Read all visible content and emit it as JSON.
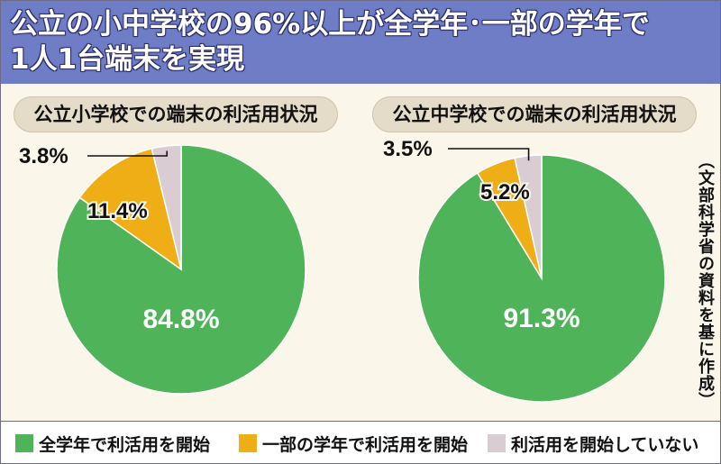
{
  "title": {
    "line1": "公立の小中学校の96%以上が全学年･一部の学年で",
    "line2": "1人1台端末を実現"
  },
  "source": "（文部科学省の資料を基に作成）",
  "colors": {
    "full": "#4fb35a",
    "partial": "#f0ae16",
    "none": "#d9cdd3",
    "title_bg": "#6f7cc6",
    "panel_bg": "#fbf6ea"
  },
  "legend": [
    {
      "key": "full",
      "label": "全学年で利活用を開始"
    },
    {
      "key": "partial",
      "label": "一部の学年で利活用を開始"
    },
    {
      "key": "none",
      "label": "利活用を開始していない"
    }
  ],
  "chart_data": [
    {
      "type": "pie",
      "title": "公立小学校での端末の利活用状況",
      "slices": [
        {
          "key": "full",
          "label": "全学年で利活用を開始",
          "value": 84.8,
          "display": "84.8%"
        },
        {
          "key": "partial",
          "label": "一部の学年で利活用を開始",
          "value": 11.4,
          "display": "11.4%"
        },
        {
          "key": "none",
          "label": "利活用を開始していない",
          "value": 3.8,
          "display": "3.8%"
        }
      ]
    },
    {
      "type": "pie",
      "title": "公立中学校での端末の利活用状況",
      "slices": [
        {
          "key": "full",
          "label": "全学年で利活用を開始",
          "value": 91.3,
          "display": "91.3%"
        },
        {
          "key": "partial",
          "label": "一部の学年で利活用を開始",
          "value": 5.2,
          "display": "5.2%"
        },
        {
          "key": "none",
          "label": "利活用を開始していない",
          "value": 3.5,
          "display": "3.5%"
        }
      ]
    }
  ]
}
